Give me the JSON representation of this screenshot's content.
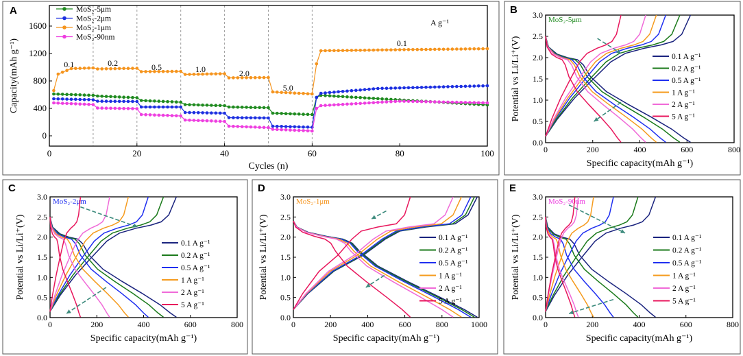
{
  "figure_alt": "Rate performance and charge/discharge profiles of MoS2 electrodes",
  "colors": {
    "green": "#1f8a1f",
    "blue": "#1c2fe0",
    "orange": "#f5941d",
    "magenta": "#ee3ee0",
    "navy": "#1a237e",
    "darkgreen": "#1b7a1b",
    "bright_blue": "#1f2ff0",
    "c_orange": "#f59b1e",
    "pink": "#f06ad8",
    "crimson": "#e8175d",
    "arrow": "#3d8b7d",
    "gridline": "#9a9a9a"
  },
  "chart_data": [
    {
      "panel": "A",
      "type": "line",
      "title": "",
      "unit_note": "A g⁻¹",
      "xlabel": "Cycles (n)",
      "ylabel": "Capacity(mAh g⁻¹)",
      "xlim": [
        0,
        100
      ],
      "ylim": [
        -150,
        1900
      ],
      "xticks": [
        0,
        20,
        40,
        60,
        80,
        100
      ],
      "yticks": [
        0,
        400,
        800,
        1200,
        1600
      ],
      "vlines": [
        10,
        20,
        30,
        40,
        50,
        60
      ],
      "legend_position": "top-left",
      "rate_labels": [
        {
          "text": "0.1",
          "x": 4.5,
          "y": 1000
        },
        {
          "text": "0.2",
          "x": 14.5,
          "y": 1020
        },
        {
          "text": "0.5",
          "x": 24.5,
          "y": 960
        },
        {
          "text": "1.0",
          "x": 34.5,
          "y": 930
        },
        {
          "text": "2.0",
          "x": 44.5,
          "y": 870
        },
        {
          "text": "5.0",
          "x": 54.5,
          "y": 660
        },
        {
          "text": "0.1",
          "x": 80.5,
          "y": 1310
        }
      ],
      "series": [
        {
          "name": "MoS₂-5μm",
          "color_key": "green",
          "segments": [
            [
              1,
              610,
              10,
              590
            ],
            [
              11,
              580,
              20,
              555
            ],
            [
              21,
              515,
              30,
              490
            ],
            [
              31,
              455,
              40,
              440
            ],
            [
              41,
              420,
              50,
              410
            ],
            [
              51,
              330,
              60,
              310
            ]
          ],
          "recovery": [
            [
              61,
              560
            ],
            [
              62,
              590
            ],
            [
              100,
              450
            ]
          ]
        },
        {
          "name": "MoS₂-2μm",
          "color_key": "blue",
          "segments": [
            [
              1,
              540,
              10,
              525
            ],
            [
              11,
              505,
              20,
              500
            ],
            [
              21,
              420,
              30,
              420
            ],
            [
              31,
              340,
              40,
              330
            ],
            [
              41,
              265,
              50,
              260
            ],
            [
              51,
              140,
              60,
              125
            ]
          ],
          "recovery": [
            [
              61,
              560
            ],
            [
              62,
              620
            ],
            [
              75,
              690
            ],
            [
              100,
              730
            ]
          ]
        },
        {
          "name": "MoS₂-1μm",
          "color_key": "orange",
          "segments": [
            [
              1,
              660,
              2,
              900,
              5,
              980,
              10,
              990
            ],
            [
              11,
              975,
              20,
              985
            ],
            [
              21,
              935,
              30,
              940
            ],
            [
              31,
              895,
              40,
              905
            ],
            [
              41,
              845,
              50,
              850
            ],
            [
              51,
              640,
              60,
              610
            ]
          ],
          "recovery": [
            [
              61,
              1050
            ],
            [
              62,
              1240
            ],
            [
              80,
              1255
            ],
            [
              100,
              1270
            ]
          ]
        },
        {
          "name": "MoS₂-90nm",
          "color_key": "magenta",
          "segments": [
            [
              1,
              480,
              10,
              455
            ],
            [
              11,
              405,
              20,
              395
            ],
            [
              21,
              310,
              30,
              290
            ],
            [
              31,
              230,
              40,
              210
            ],
            [
              41,
              140,
              50,
              120
            ],
            [
              51,
              95,
              60,
              70
            ]
          ],
          "recovery": [
            [
              61,
              400
            ],
            [
              62,
              440
            ],
            [
              80,
              505
            ],
            [
              100,
              480
            ]
          ]
        }
      ]
    },
    {
      "panel": "B",
      "type": "line",
      "title": "MoS₂-5μm",
      "title_color_key": "green",
      "xlabel": "Specific capacity(mAh g⁻¹)",
      "ylabel": "Potential vs Li/Li⁺(V)",
      "xlim": [
        0,
        800
      ],
      "ylim": [
        0,
        3.0
      ],
      "xticks": [
        0,
        200,
        400,
        600,
        800
      ],
      "yticks": [
        0.0,
        0.5,
        1.0,
        1.5,
        2.0,
        2.5,
        3.0
      ],
      "legend_position": "right",
      "arrows": [
        {
          "from": [
            220,
            2.45
          ],
          "to": [
            320,
            2.1
          ]
        },
        {
          "from": [
            320,
            0.95
          ],
          "to": [
            205,
            0.5
          ]
        }
      ],
      "series": [
        {
          "name": "0.1 A g⁻¹",
          "color_key": "navy",
          "capacity": 615
        },
        {
          "name": "0.2 A g⁻¹",
          "color_key": "darkgreen",
          "capacity": 570
        },
        {
          "name": "0.5 A g⁻¹",
          "color_key": "bright_blue",
          "capacity": 510
        },
        {
          "name": "1 A g⁻¹",
          "color_key": "c_orange",
          "capacity": 470
        },
        {
          "name": "2 A g⁻¹",
          "color_key": "pink",
          "capacity": 425
        },
        {
          "name": "5 A g⁻¹",
          "color_key": "crimson",
          "capacity": 320
        }
      ]
    },
    {
      "panel": "C",
      "type": "line",
      "title": "MoS₂-2μm",
      "title_color_key": "bright_blue",
      "xlabel": "Specific capacity(mAh g⁻¹)",
      "ylabel": "Potential vs Li/Li⁺(V)",
      "xlim": [
        0,
        800
      ],
      "ylim": [
        0,
        3.0
      ],
      "xticks": [
        0,
        200,
        400,
        600,
        800
      ],
      "yticks": [
        0.0,
        0.5,
        1.0,
        1.5,
        2.0,
        2.5,
        3.0
      ],
      "legend_position": "right",
      "arrows": [
        {
          "from": [
            130,
            2.75
          ],
          "to": [
            375,
            2.25
          ]
        },
        {
          "from": [
            240,
            0.75
          ],
          "to": [
            70,
            0.1
          ]
        }
      ],
      "series": [
        {
          "name": "0.1 A g⁻¹",
          "color_key": "navy",
          "capacity": 540
        },
        {
          "name": "0.2 A g⁻¹",
          "color_key": "darkgreen",
          "capacity": 485
        },
        {
          "name": "0.5 A g⁻¹",
          "color_key": "bright_blue",
          "capacity": 420
        },
        {
          "name": "1 A g⁻¹",
          "color_key": "c_orange",
          "capacity": 335
        },
        {
          "name": "2 A g⁻¹",
          "color_key": "pink",
          "capacity": 255
        },
        {
          "name": "5 A g⁻¹",
          "color_key": "crimson",
          "capacity": 130
        }
      ]
    },
    {
      "panel": "D",
      "type": "line",
      "title": "MoS₂-1μm",
      "title_color_key": "orange",
      "xlabel": "Specific capacity(mAh g⁻¹)",
      "ylabel": "Potential vs Li/Li⁺(V)",
      "xlim": [
        0,
        1000
      ],
      "ylim": [
        0,
        3.0
      ],
      "xticks": [
        0,
        200,
        400,
        600,
        800,
        1000
      ],
      "yticks": [
        0.0,
        0.5,
        1.0,
        1.5,
        2.0,
        2.5,
        3.0
      ],
      "legend_position": "right",
      "arrows": [
        {
          "from": [
            500,
            2.65
          ],
          "to": [
            420,
            2.45
          ]
        },
        {
          "from": [
            490,
            1.05
          ],
          "to": [
            390,
            0.75
          ]
        }
      ],
      "series": [
        {
          "name": "0.1 A g⁻¹",
          "color_key": "navy",
          "capacity": 990
        },
        {
          "name": "0.2 A g⁻¹",
          "color_key": "darkgreen",
          "capacity": 975
        },
        {
          "name": "0.5 A g⁻¹",
          "color_key": "bright_blue",
          "capacity": 955
        },
        {
          "name": "1 A g⁻¹",
          "color_key": "c_orange",
          "capacity": 905
        },
        {
          "name": "2 A g⁻¹",
          "color_key": "pink",
          "capacity": 860
        },
        {
          "name": "5 A g⁻¹",
          "color_key": "crimson",
          "capacity": 630
        }
      ]
    },
    {
      "panel": "E",
      "type": "line",
      "title": "MoS₂-90nm",
      "title_color_key": "magenta",
      "xlabel": "Specific capacity(mAh g⁻¹)",
      "ylabel": "Potential vs Li/Li⁺(V)",
      "xlim": [
        0,
        800
      ],
      "ylim": [
        0,
        3.0
      ],
      "xticks": [
        0,
        200,
        400,
        600,
        800
      ],
      "yticks": [
        0.0,
        0.5,
        1.0,
        1.5,
        2.0,
        2.5,
        3.0
      ],
      "legend_position": "right",
      "arrows": [
        {
          "from": [
            100,
            2.8
          ],
          "to": [
            340,
            2.1
          ]
        },
        {
          "from": [
            290,
            0.45
          ],
          "to": [
            100,
            0.1
          ]
        }
      ],
      "series": [
        {
          "name": "0.1 A g⁻¹",
          "color_key": "navy",
          "capacity": 470
        },
        {
          "name": "0.2 A g⁻¹",
          "color_key": "darkgreen",
          "capacity": 395
        },
        {
          "name": "0.5 A g⁻¹",
          "color_key": "bright_blue",
          "capacity": 290
        },
        {
          "name": "1 A g⁻¹",
          "color_key": "c_orange",
          "capacity": 205
        },
        {
          "name": "2 A g⁻¹",
          "color_key": "pink",
          "capacity": 140
        },
        {
          "name": "5 A g⁻¹",
          "color_key": "crimson",
          "capacity": 125
        }
      ]
    }
  ]
}
